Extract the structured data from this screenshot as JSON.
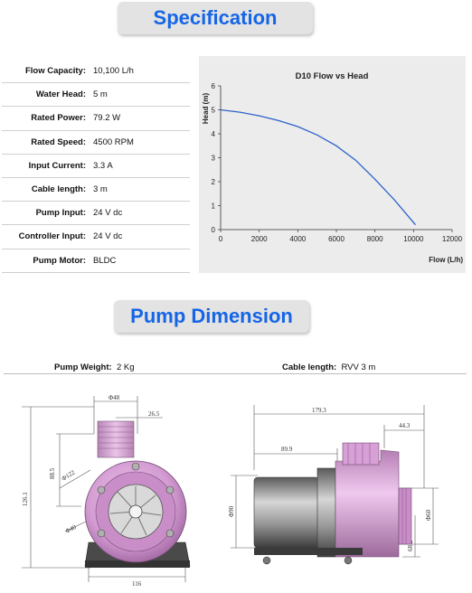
{
  "spec_title": "Specification",
  "specs": [
    {
      "label": "Flow Capacity:",
      "value": "10,100 L/h"
    },
    {
      "label": "Water Head:",
      "value": "5 m"
    },
    {
      "label": "Rated Power:",
      "value": "79.2 W"
    },
    {
      "label": "Rated Speed:",
      "value": "4500 RPM"
    },
    {
      "label": "Input Current:",
      "value": "3.3 A"
    },
    {
      "label": "Cable length:",
      "value": "3 m"
    },
    {
      "label": "Pump Input:",
      "value": "24 V dc"
    },
    {
      "label": "Controller Input:",
      "value": "24 V dc"
    },
    {
      "label": "Pump  Motor:",
      "value": "BLDC"
    }
  ],
  "chart_data": {
    "type": "line",
    "title": "D10 Flow vs Head",
    "xlabel": "Flow (L/h)",
    "ylabel": "Head (m)",
    "xlim": [
      0,
      12000
    ],
    "ylim": [
      0,
      6
    ],
    "xticks": [
      "0",
      "2000",
      "4000",
      "6000",
      "8000",
      "10000",
      "12000"
    ],
    "yticks": [
      "0",
      "1",
      "2",
      "3",
      "4",
      "5",
      "6"
    ],
    "x": [
      0,
      1000,
      2000,
      3000,
      4000,
      5000,
      6000,
      7000,
      8000,
      9000,
      10100
    ],
    "values": [
      5.0,
      4.9,
      4.75,
      4.55,
      4.3,
      3.95,
      3.5,
      2.9,
      2.1,
      1.25,
      0.2
    ],
    "color": "#2c62c9",
    "grid": false
  },
  "dim_title": "Pump Dimension",
  "weight": {
    "label": "Pump Weight:",
    "value": "2 Kg"
  },
  "cable": {
    "label": "Cable length:",
    "value": "RVV 3 m"
  },
  "front_dims": {
    "d48": "Φ48",
    "w26": "26.5",
    "r122": "Φ122",
    "h88": "88.5",
    "d40": "Φ40",
    "h126": "126.1",
    "w116": "116"
  },
  "side_dims": {
    "l179": "179.3",
    "l44": "44.3",
    "l89": "89.9",
    "d90": "Φ90",
    "d60": "Φ60",
    "h68": "68.2"
  },
  "colors": {
    "accent": "#1565e6",
    "banner_bg": "#e3e3e3",
    "pump_body": "#d7a0d6",
    "motor": "#9a9a9a"
  }
}
